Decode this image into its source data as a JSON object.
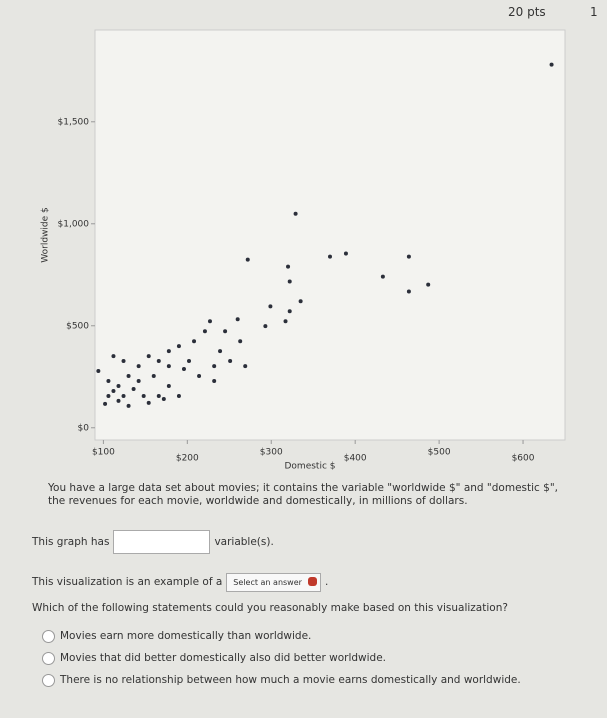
{
  "header": {
    "points": "20 pts",
    "attempts": "1"
  },
  "chart_data": {
    "type": "scatter",
    "x_label": "Domestic $",
    "y_label": "Worldwide $",
    "color": "#2b2f3a",
    "xlim": [
      90,
      650
    ],
    "ylim": [
      -60,
      1950
    ],
    "xticks": [
      {
        "value": 100,
        "label": "$100"
      },
      {
        "value": 200,
        "label": "$200"
      },
      {
        "value": 300,
        "label": "$300"
      },
      {
        "value": 400,
        "label": "$400"
      },
      {
        "value": 500,
        "label": "$500"
      },
      {
        "value": 600,
        "label": "$600"
      }
    ],
    "yticks": [
      {
        "value": 0,
        "label": "$0"
      },
      {
        "value": 500,
        "label": "$500"
      },
      {
        "value": 1000,
        "label": "$1,000"
      },
      {
        "value": 1500,
        "label": "$1,500"
      }
    ],
    "x": [
      634,
      329,
      370,
      389,
      464,
      272,
      320,
      322,
      433,
      487,
      464,
      335,
      322,
      299,
      317,
      293,
      260,
      227,
      245,
      263,
      221,
      239,
      269,
      251,
      208,
      190,
      178,
      166,
      154,
      142,
      124,
      112,
      130,
      106,
      118,
      142,
      160,
      178,
      190,
      214,
      232,
      166,
      148,
      124,
      106,
      102,
      130,
      154,
      172,
      118,
      112,
      136,
      94,
      178,
      202,
      196,
      232
    ],
    "values": [
      1780,
      1049,
      839,
      854,
      839,
      824,
      790,
      717,
      741,
      702,
      668,
      620,
      571,
      595,
      522,
      498,
      532,
      522,
      473,
      424,
      473,
      376,
      302,
      327,
      424,
      400,
      376,
      327,
      351,
      302,
      327,
      351,
      254,
      229,
      205,
      229,
      254,
      205,
      156,
      254,
      229,
      156,
      156,
      156,
      156,
      117,
      107,
      122,
      141,
      132,
      180,
      190,
      278,
      302,
      327,
      288,
      302
    ]
  },
  "intro": "You have a large data set about movies; it contains the variable \"worldwide $\" and \"domestic $\", the revenues for each movie, worldwide and domestically, in millions of dollars.",
  "q1": {
    "before": "This graph has",
    "after": "variable(s)."
  },
  "q2": {
    "before": "This visualization is an example of a",
    "select": "Select an answer",
    "after": "."
  },
  "q3": {
    "prompt": "Which of the following statements could you reasonably make based on this visualization?",
    "options": [
      "Movies earn more domestically than worldwide.",
      "Movies that did better domestically also did better worldwide.",
      "There is no relationship between how much a movie earns domestically and worldwide."
    ]
  }
}
